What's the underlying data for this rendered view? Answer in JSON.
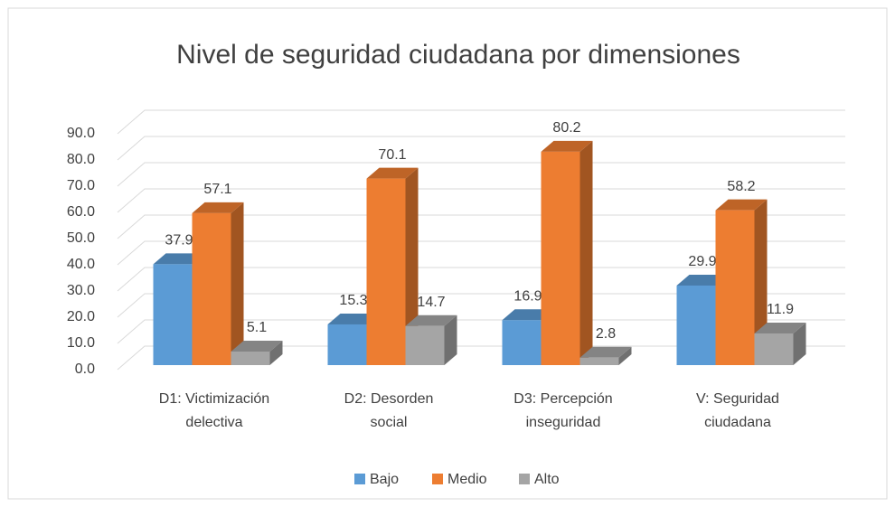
{
  "chart_data": {
    "type": "bar3d",
    "title": "Nivel de seguridad ciudadana por dimensiones",
    "categories": [
      "D1: Victimización\ndelectiva",
      "D2: Desorden\nsocial",
      "D3: Percepción\ninseguridad",
      "V: Seguridad\nciudadana"
    ],
    "series": [
      {
        "name": "Bajo",
        "color": "#5b9bd5",
        "values": [
          37.9,
          15.3,
          16.9,
          29.9
        ]
      },
      {
        "name": "Medio",
        "color": "#ed7d31",
        "values": [
          57.1,
          70.1,
          80.2,
          58.2
        ]
      },
      {
        "name": "Alto",
        "color": "#a5a5a5",
        "values": [
          5.1,
          14.7,
          2.8,
          11.9
        ]
      }
    ],
    "ylim": [
      0,
      90
    ],
    "yticks": [
      {
        "value": 0,
        "label": "0.0"
      },
      {
        "value": 10,
        "label": "10.0"
      },
      {
        "value": 20,
        "label": "20.0"
      },
      {
        "value": 30,
        "label": "30.0"
      },
      {
        "value": 40,
        "label": "40.0"
      },
      {
        "value": 50,
        "label": "50.0"
      },
      {
        "value": 60,
        "label": "60.0"
      },
      {
        "value": 70,
        "label": "70.0"
      },
      {
        "value": 80,
        "label": "80.0"
      },
      {
        "value": 90,
        "label": "90.0"
      }
    ],
    "grid": true,
    "legend": "bottom"
  }
}
